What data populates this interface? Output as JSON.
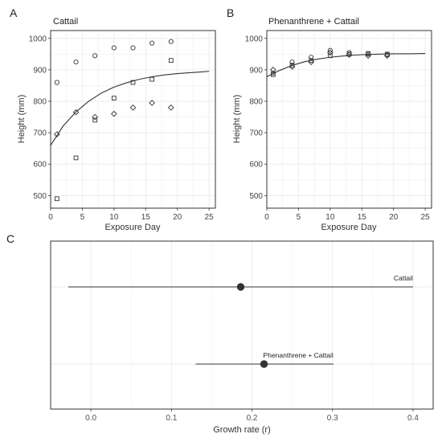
{
  "colors": {
    "grid": "#ebebeb",
    "frame": "#333333",
    "ink": "#333333",
    "point": "#333333",
    "background": "#ffffff"
  },
  "chart_data": [
    {
      "panel": "A",
      "type": "scatter",
      "title": "Cattail",
      "xlabel": "Exposure Day",
      "ylabel": "Height (mm)",
      "xlim": [
        0,
        26
      ],
      "ylim": [
        460,
        1025
      ],
      "xticks": [
        0,
        5,
        10,
        15,
        20,
        25
      ],
      "yticks": [
        500,
        600,
        700,
        800,
        900,
        1000
      ],
      "grid": true,
      "series": [
        {
          "marker": "circle",
          "x": [
            1,
            4,
            7,
            10,
            13,
            16,
            19
          ],
          "y": [
            860,
            925,
            945,
            970,
            970,
            985,
            990
          ]
        },
        {
          "marker": "square",
          "x": [
            1,
            4,
            7,
            10,
            13,
            16,
            19
          ],
          "y": [
            490,
            620,
            740,
            810,
            860,
            870,
            930
          ]
        },
        {
          "marker": "diamond",
          "x": [
            1,
            4,
            7,
            10,
            13,
            16,
            19
          ],
          "y": [
            695,
            765,
            750,
            760,
            780,
            795,
            780
          ]
        }
      ],
      "fit_curve": {
        "x": [
          0,
          2,
          4,
          6,
          8,
          10,
          12,
          14,
          16,
          18,
          20,
          22,
          25
        ],
        "y": [
          660,
          722,
          766,
          800,
          826,
          845,
          859,
          870,
          878,
          884,
          888,
          891,
          895
        ]
      }
    },
    {
      "panel": "B",
      "type": "scatter",
      "title": "Phenanthrene + Cattail",
      "xlabel": "Exposure Day",
      "ylabel": "Height (mm)",
      "xlim": [
        0,
        26
      ],
      "ylim": [
        460,
        1025
      ],
      "xticks": [
        0,
        5,
        10,
        15,
        20,
        25
      ],
      "yticks": [
        500,
        600,
        700,
        800,
        900,
        1000
      ],
      "grid": true,
      "series": [
        {
          "marker": "circle",
          "x": [
            1,
            4,
            7,
            10,
            13,
            16,
            19
          ],
          "y": [
            890,
            925,
            940,
            962,
            955,
            950,
            948
          ]
        },
        {
          "marker": "square",
          "x": [
            1,
            4,
            7,
            10,
            13,
            16,
            19
          ],
          "y": [
            885,
            915,
            930,
            945,
            950,
            952,
            950
          ]
        },
        {
          "marker": "diamond",
          "x": [
            1,
            4,
            7,
            10,
            13,
            16,
            19
          ],
          "y": [
            900,
            910,
            925,
            955,
            948,
            945,
            945
          ]
        }
      ],
      "fit_curve": {
        "x": [
          0,
          2,
          4,
          6,
          8,
          10,
          12,
          14,
          16,
          18,
          20,
          22,
          25
        ],
        "y": [
          878,
          898,
          914,
          926,
          934,
          940,
          944,
          947,
          949,
          950,
          951,
          951,
          952
        ]
      }
    },
    {
      "panel": "C",
      "type": "scatter",
      "xlabel": "Growth rate (r)",
      "xlim": [
        -0.05,
        0.425
      ],
      "xticks": [
        0.0,
        0.1,
        0.2,
        0.3,
        0.4
      ],
      "xticklabels": [
        "0.0",
        "0.1",
        "0.2",
        "0.3",
        "0.4"
      ],
      "grid": true,
      "rows": [
        {
          "label": "Cattail",
          "estimate": 0.186,
          "lower": -0.028,
          "upper": 0.4
        },
        {
          "label": "Phenanthrene + Cattail",
          "estimate": 0.215,
          "lower": 0.13,
          "upper": 0.301
        }
      ]
    }
  ]
}
